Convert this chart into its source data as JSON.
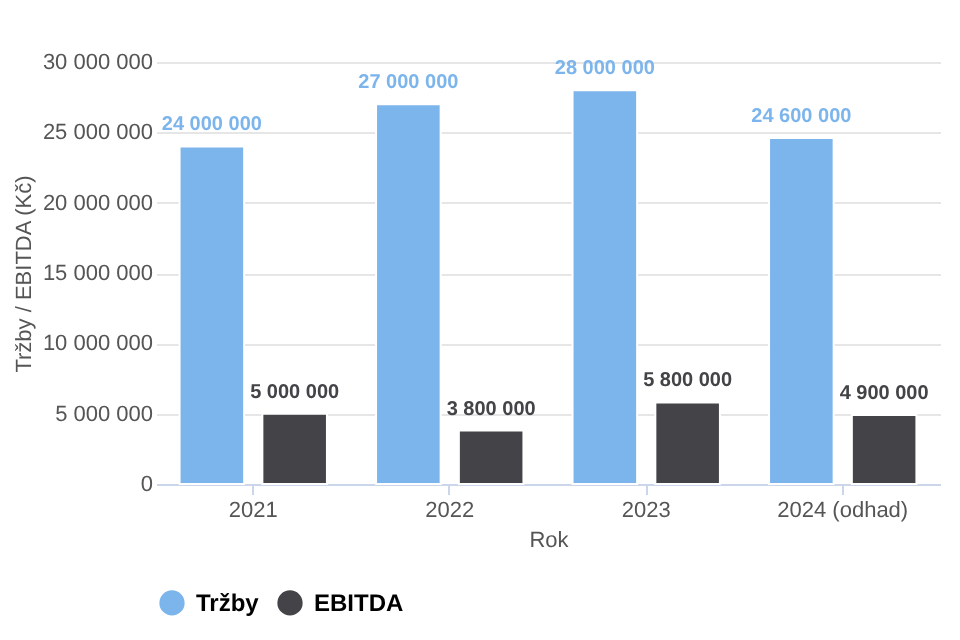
{
  "chart_data": {
    "type": "bar",
    "xlabel": "Rok",
    "ylabel": "Tržby / EBITDA (Kč)",
    "categories": [
      "2021",
      "2022",
      "2023",
      "2024 (odhad)"
    ],
    "series": [
      {
        "name": "Tržby",
        "color": "#7cb5ec",
        "values": [
          24000000,
          27000000,
          28000000,
          24600000
        ],
        "value_labels": [
          "24 000 000",
          "27 000 000",
          "28 000 000",
          "24 600 000"
        ]
      },
      {
        "name": "EBITDA",
        "color": "#434348",
        "values": [
          5000000,
          3800000,
          5800000,
          4900000
        ],
        "value_labels": [
          "5 000 000",
          "3 800 000",
          "5 800 000",
          "4 900 000"
        ]
      }
    ],
    "ylim": [
      0,
      30000000
    ],
    "yticks": [
      {
        "value": 0,
        "label": "0"
      },
      {
        "value": 5000000,
        "label": "5 000 000"
      },
      {
        "value": 10000000,
        "label": "10 000 000"
      },
      {
        "value": 15000000,
        "label": "15 000 000"
      },
      {
        "value": 20000000,
        "label": "20 000 000"
      },
      {
        "value": 25000000,
        "label": "25 000 000"
      },
      {
        "value": 30000000,
        "label": "30 000 000"
      }
    ],
    "grid": "y",
    "legend": "bottom"
  }
}
